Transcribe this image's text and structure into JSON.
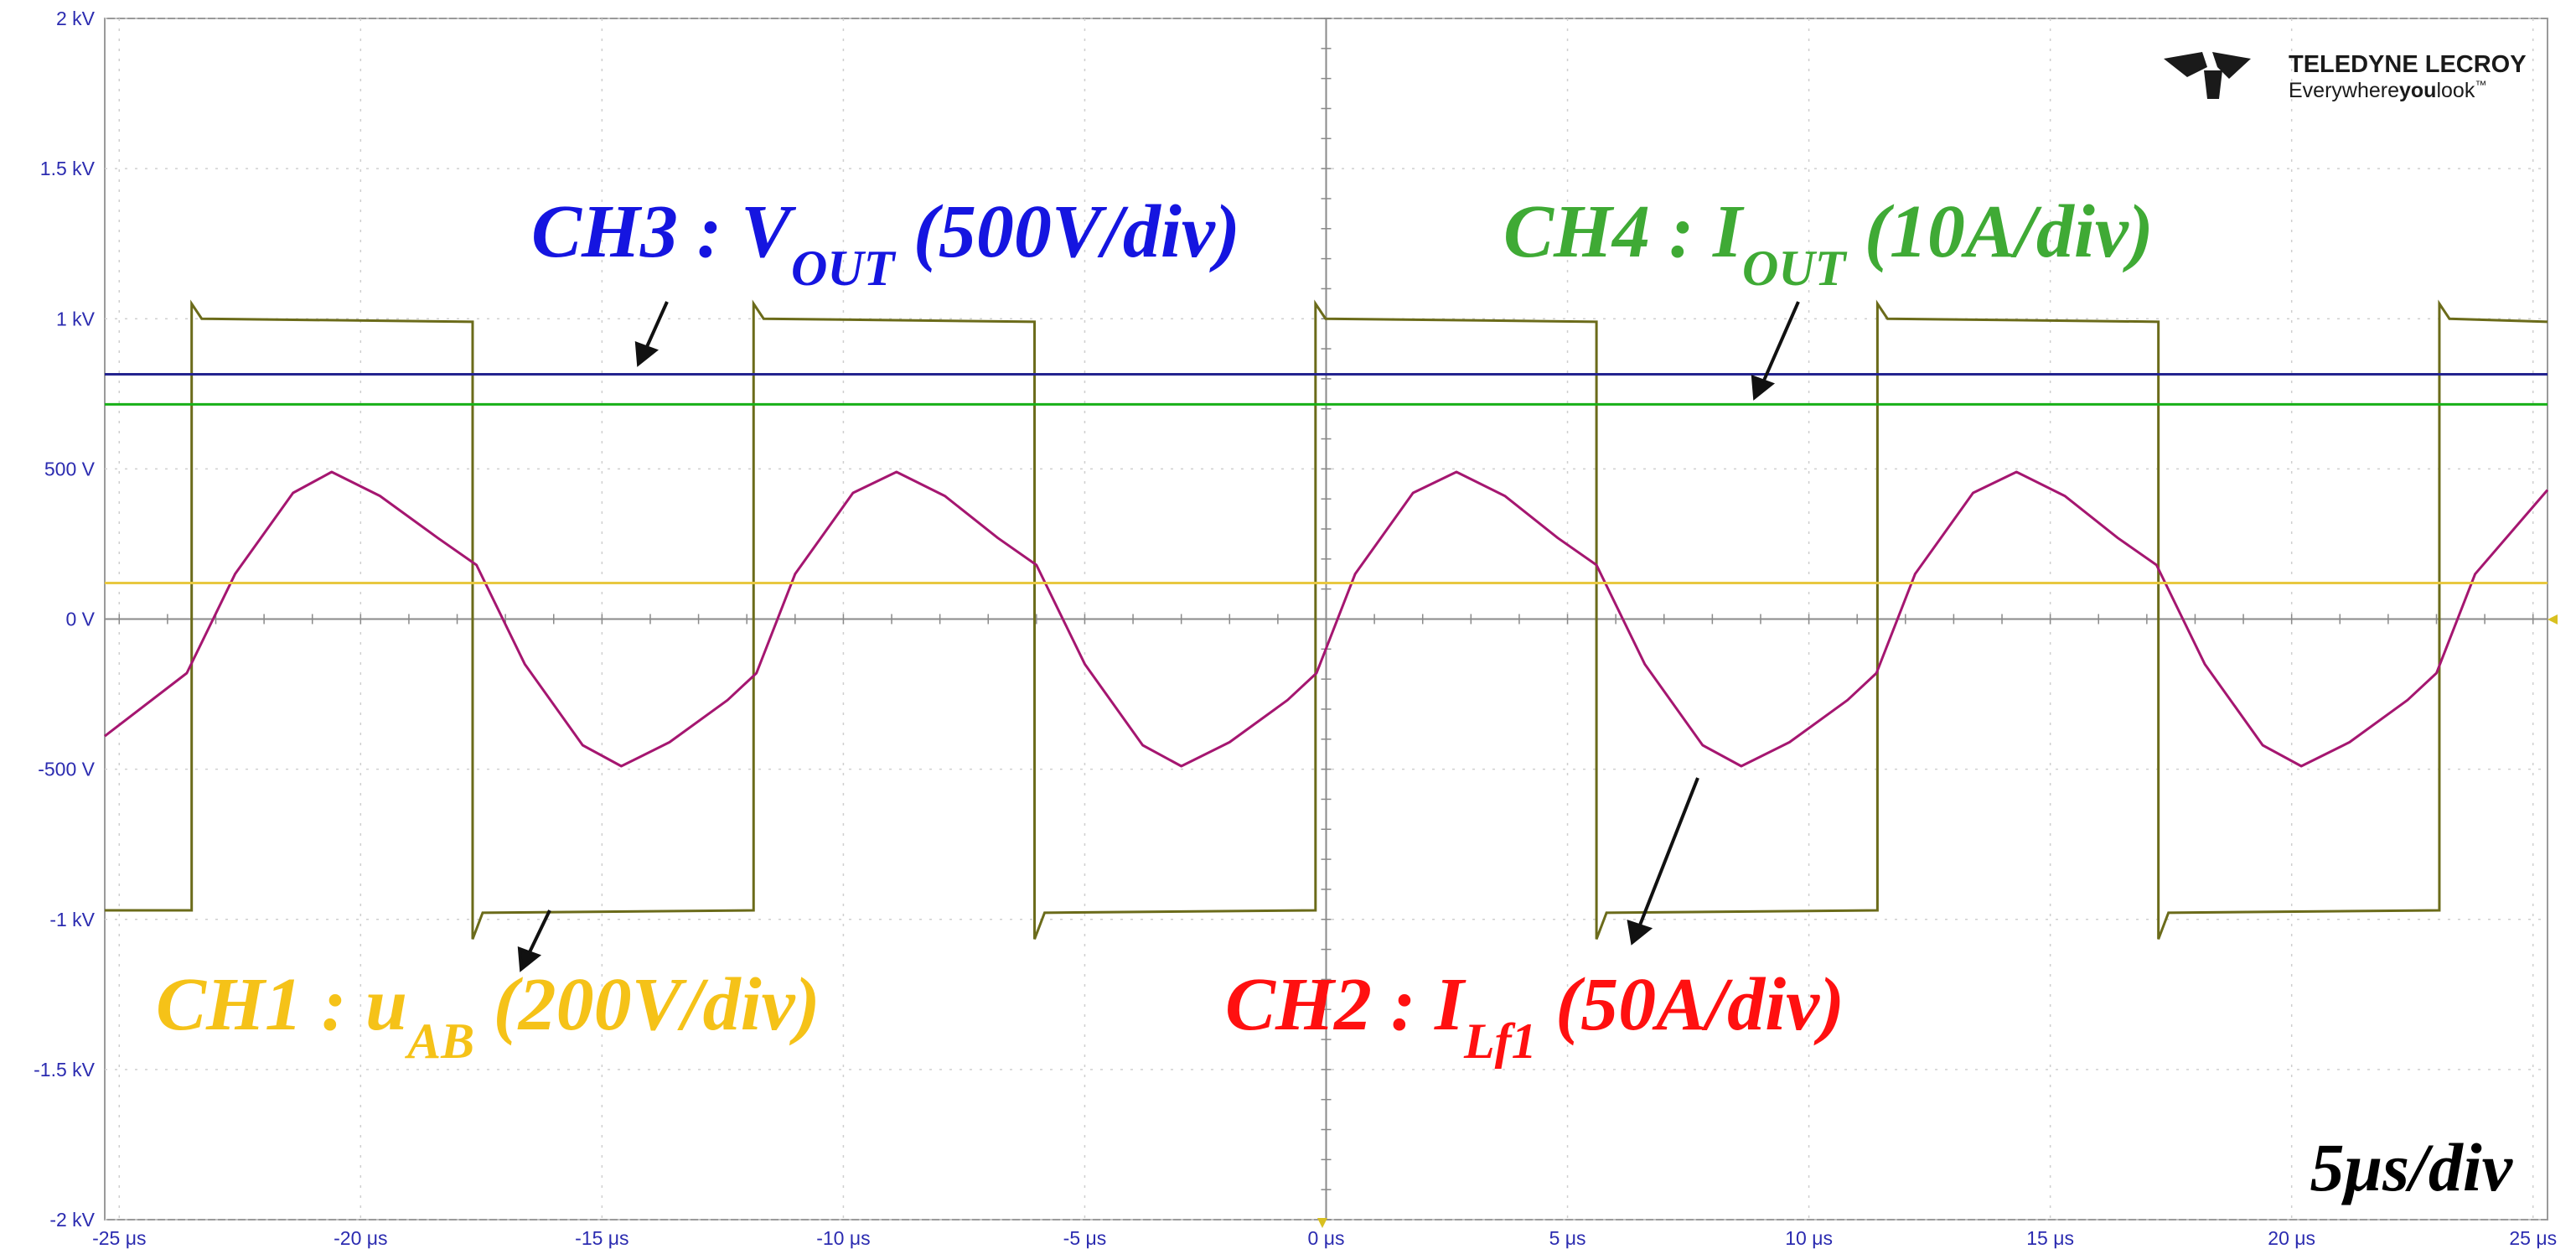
{
  "logo": {
    "brand": "TELEDYNE LECROY",
    "tagline_a": "Everywhere",
    "tagline_b": "you",
    "tagline_c": "look",
    "tm": "™"
  },
  "timebase_label": "5μs/div",
  "annotations": {
    "ch3": {
      "prefix": "CH3 : V",
      "sub": "OUT",
      "scale": " (500V/div)",
      "color": "#1515e0"
    },
    "ch4": {
      "prefix": "CH4 : I",
      "sub": "OUT",
      "scale": " (10A/div)",
      "color": "#3faa35"
    },
    "ch1": {
      "prefix": "CH1 : u",
      "sub": "AB",
      "scale": " (200V/div)",
      "color": "#f5c218"
    },
    "ch2": {
      "prefix": "CH2 : I",
      "sub": "Lf1",
      "scale": " (50A/div)",
      "color": "#ff1010"
    }
  },
  "chart_data": {
    "type": "line",
    "title": "",
    "xlabel": "",
    "ylabel": "",
    "xlim": [
      -25.3,
      25.3
    ],
    "ylim": [
      -2000,
      2000
    ],
    "x_unit": "μs",
    "grid": true,
    "x_ticks": [
      -25,
      -20,
      -15,
      -10,
      -5,
      0,
      5,
      10,
      15,
      20,
      25
    ],
    "x_tick_labels": [
      "-25 μs",
      "-20 μs",
      "-15 μs",
      "-10 μs",
      "-5 μs",
      "0 μs",
      "5 μs",
      "10 μs",
      "15 μs",
      "20 μs",
      "25 μs"
    ],
    "y_ticks": [
      2000,
      1500,
      1000,
      500,
      0,
      -500,
      -1000,
      -1500,
      -2000
    ],
    "y_tick_labels": [
      "2 kV",
      "1.5 kV",
      "1 kV",
      "500 V",
      "0 V",
      "-500 V",
      "-1 kV",
      "-1.5 kV",
      "-2 kV"
    ],
    "series": [
      {
        "name": "CH1 : uAB",
        "color": "#6b6b1a",
        "kind": "square",
        "period": 11.64,
        "rise_times": [
          -23.5,
          -11.86,
          -0.22,
          11.42,
          23.06
        ],
        "fall_times": [
          -17.68,
          -6.04,
          5.6,
          17.24
        ],
        "high": 990,
        "low": -970,
        "overshoot": 60
      },
      {
        "name": "CH2 : ILf1",
        "color": "#a51670",
        "kind": "x_y",
        "x": [
          -25.3,
          -23.6,
          -22.6,
          -21.4,
          -20.6,
          -19.6,
          -18.4,
          -17.6,
          -16.6,
          -15.4,
          -14.6,
          -13.6,
          -12.4,
          -11.8,
          -11.0,
          -9.8,
          -8.9,
          -7.9,
          -6.8,
          -6.0,
          -5.0,
          -3.8,
          -3.0,
          -2.0,
          -0.8,
          -0.2,
          0.6,
          1.8,
          2.7,
          3.7,
          4.8,
          5.6,
          6.6,
          7.8,
          8.6,
          9.6,
          10.8,
          11.4,
          12.2,
          13.4,
          14.3,
          15.3,
          16.4,
          17.2,
          18.2,
          19.4,
          20.2,
          21.2,
          22.4,
          23.0,
          23.8,
          25.3
        ],
        "y": [
          -390,
          -180,
          150,
          420,
          490,
          410,
          270,
          180,
          -150,
          -420,
          -490,
          -410,
          -270,
          -180,
          150,
          420,
          490,
          410,
          270,
          180,
          -150,
          -420,
          -490,
          -410,
          -270,
          -180,
          150,
          420,
          490,
          410,
          270,
          180,
          -150,
          -420,
          -490,
          -410,
          -270,
          -180,
          150,
          420,
          490,
          410,
          270,
          180,
          -150,
          -420,
          -490,
          -410,
          -270,
          -180,
          150,
          430
        ]
      },
      {
        "name": "CH3 : VOUT",
        "color": "#23238f",
        "kind": "flat",
        "level": 815
      },
      {
        "name": "CH4 : IOUT",
        "color": "#18b018",
        "kind": "flat",
        "level": 715
      },
      {
        "name": "CH1 baseline",
        "color": "#e8c840",
        "kind": "flat",
        "level": 120
      }
    ]
  }
}
